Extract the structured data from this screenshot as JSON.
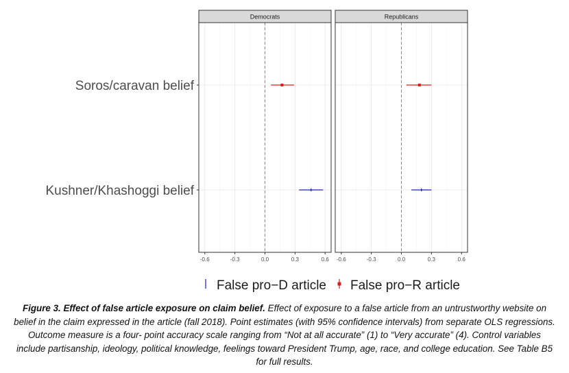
{
  "chart_data": {
    "type": "forest",
    "facets": [
      "Democrats",
      "Republicans"
    ],
    "categories": [
      "Soros/caravan belief",
      "Kushner/Khashoggi belief"
    ],
    "x_ticks": [
      "-0.6",
      "-0.3",
      "0.0",
      "0.3",
      "0.6"
    ],
    "x_tick_values": [
      -0.6,
      -0.3,
      0.0,
      0.3,
      0.6
    ],
    "xlim": [
      -0.66,
      0.66
    ],
    "reference_line": 0,
    "grid": true,
    "legend_position": "bottom",
    "series": [
      {
        "name": "False pro−D article",
        "color": "#1f1fbf",
        "points": [
          {
            "facet": "Democrats",
            "category": "Kushner/Khashoggi belief",
            "estimate": 0.46,
            "ci": [
              0.34,
              0.58
            ]
          },
          {
            "facet": "Republicans",
            "category": "Kushner/Khashoggi belief",
            "estimate": 0.2,
            "ci": [
              0.1,
              0.3
            ]
          }
        ]
      },
      {
        "name": "False pro−R article",
        "color": "#d42020",
        "points": [
          {
            "facet": "Democrats",
            "category": "Soros/caravan belief",
            "estimate": 0.17,
            "ci": [
              0.06,
              0.29
            ]
          },
          {
            "facet": "Republicans",
            "category": "Soros/caravan belief",
            "estimate": 0.18,
            "ci": [
              0.05,
              0.3
            ]
          }
        ]
      }
    ]
  },
  "caption": {
    "bold": "Figure 3. Effect of false article exposure on claim belief.",
    "text": " Effect of exposure to a false article from an untrustworthy website on belief in the claim expressed in the article (fall 2018). Point estimates (with 95% confidence intervals) from separate OLS regressions. Outcome measure is a four- point accuracy scale ranging from “Not at all accurate” (1) to “Very accurate” (4). Control variables include partisanship, ideology, political knowledge, feelings toward President Trump, age, race, and college education. See Table B5 for full results."
  }
}
